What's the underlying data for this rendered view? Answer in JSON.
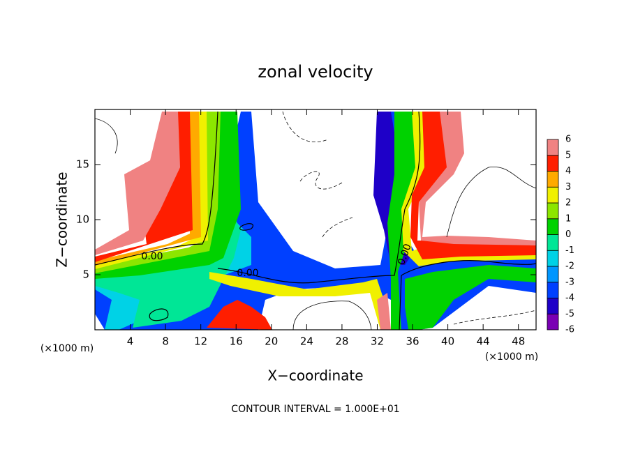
{
  "chart_data": {
    "type": "contour",
    "title": "zonal velocity",
    "x_label": "X−coordinate",
    "y_label": "Z−coordinate",
    "x_unit": "(×1000 m)",
    "xlim": [
      0,
      50
    ],
    "xticks": [
      4,
      8,
      12,
      16,
      20,
      24,
      28,
      32,
      36,
      40,
      44,
      48
    ],
    "ylim": [
      0,
      20
    ],
    "yticks": [
      5,
      10,
      15
    ],
    "colorbar": {
      "levels": [
        -6,
        -5,
        -4,
        -3,
        -2,
        -1,
        0,
        1,
        2,
        3,
        4,
        5,
        6
      ],
      "colors": [
        "#7a00b4",
        "#1e00c8",
        "#0040ff",
        "#0096ff",
        "#00d2e6",
        "#00e696",
        "#00d200",
        "#8ce600",
        "#f0f000",
        "#ffaa00",
        "#ff1e00",
        "#f08282"
      ]
    },
    "contour_labels": [
      "0.00",
      "0.00",
      "0.00"
    ],
    "footer": "CONTOUR INTERVAL = 1.000E+01"
  }
}
